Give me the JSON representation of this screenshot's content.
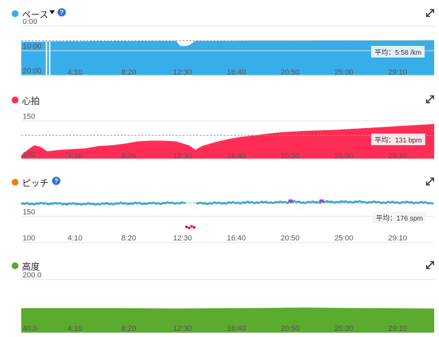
{
  "panels": {
    "pace": {
      "title": "ペース",
      "help": "?",
      "color": "#37aee9",
      "avg_label": "平均：5:58 /km",
      "y_ticks": [
        "0:00",
        "10:00",
        "20:00"
      ]
    },
    "hr": {
      "title": "心拍",
      "color": "#ff2d55",
      "avg_label": "平均：131 bpm",
      "y_ticks": [
        "150",
        "100"
      ]
    },
    "cadence": {
      "title": "ピッチ",
      "help": "?",
      "color": "#e8840c",
      "avg_label": "平均：176 spm",
      "y_ticks": [
        "150",
        "100"
      ]
    },
    "elevation": {
      "title": "高度",
      "color": "#5aab2e",
      "y_ticks": [
        "200.0",
        "40.0"
      ]
    }
  },
  "x_ticks": [
    "4:10",
    "8:20",
    "12:30",
    "16:40",
    "20:50",
    "25:00",
    "29:10"
  ],
  "chart_data": [
    {
      "type": "area",
      "name": "pace",
      "x_minutes": [
        0,
        1.5,
        3,
        4.5,
        6,
        8,
        10,
        12,
        12.3,
        12.6,
        13,
        13.5,
        14,
        16,
        18,
        20,
        22,
        24,
        26,
        28,
        30,
        32
      ],
      "y_min_per_km": [
        6.3,
        6.3,
        6.2,
        6.2,
        6.1,
        6.1,
        6.0,
        6.0,
        8.0,
        8.2,
        7.8,
        6.0,
        6.0,
        6.0,
        5.9,
        5.9,
        5.9,
        5.8,
        5.8,
        5.8,
        5.8,
        5.7
      ],
      "ylim": [
        0,
        20
      ],
      "average": 5.97
    },
    {
      "type": "area",
      "name": "heart_rate",
      "x_minutes": [
        0,
        0.5,
        1,
        1.5,
        2,
        3,
        4,
        5,
        6,
        7,
        8,
        9,
        10,
        11,
        12,
        13,
        13.5,
        14,
        15,
        16,
        17,
        18,
        19,
        20,
        21,
        22,
        24,
        26,
        28,
        30,
        32
      ],
      "y_bpm": [
        105,
        112,
        118,
        116,
        110,
        112,
        113,
        114,
        117,
        118,
        120,
        123,
        124,
        124,
        123,
        118,
        112,
        117,
        122,
        126,
        129,
        131,
        133,
        135,
        136,
        137,
        138,
        140,
        142,
        144,
        146
      ],
      "ylim": [
        100,
        165
      ],
      "average": 131
    },
    {
      "type": "scatter",
      "name": "cadence",
      "x_minutes": [
        0,
        2,
        4,
        6,
        8,
        10,
        12,
        14,
        16,
        18,
        20,
        21,
        22,
        24,
        26,
        28,
        30,
        32
      ],
      "y_spm": [
        174,
        175,
        174,
        174,
        175,
        175,
        176,
        175,
        176,
        177,
        177,
        178,
        177,
        178,
        178,
        177,
        177,
        176
      ],
      "highlight_points": [
        {
          "x": 20.8,
          "y": 180
        },
        {
          "x": 23.2,
          "y": 180
        }
      ],
      "low_points": [
        {
          "x": 12.8,
          "y": 130
        },
        {
          "x": 13.0,
          "y": 128
        },
        {
          "x": 13.2,
          "y": 131
        },
        {
          "x": 13.4,
          "y": 129
        }
      ],
      "ylim": [
        100,
        200
      ],
      "average": 176
    },
    {
      "type": "area",
      "name": "elevation",
      "x_minutes": [
        0,
        4,
        8,
        12,
        16,
        20,
        22,
        24,
        28,
        32
      ],
      "y_m": [
        114,
        114,
        114,
        113,
        114,
        115,
        116,
        115,
        114,
        113
      ],
      "ylim": [
        40,
        200
      ]
    }
  ]
}
